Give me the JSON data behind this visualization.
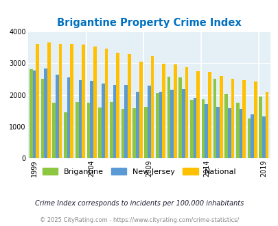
{
  "title": "Brigantine Property Crime Index",
  "subtitle": "Crime Index corresponds to incidents per 100,000 inhabitants",
  "footer": "© 2025 CityRating.com - https://www.cityrating.com/crime-statistics/",
  "years": [
    1999,
    2000,
    2001,
    2002,
    2003,
    2004,
    2005,
    2006,
    2007,
    2008,
    2009,
    2010,
    2011,
    2012,
    2013,
    2014,
    2015,
    2016,
    2017,
    2018,
    2019
  ],
  "xtick_years": [
    1999,
    2004,
    2009,
    2014,
    2019
  ],
  "xtick_labels": [
    "1999",
    "2004",
    "2009",
    "2014",
    "2019"
  ],
  "brigantine": [
    2820,
    2500,
    1760,
    1460,
    1780,
    1750,
    1600,
    1780,
    1550,
    1590,
    1630,
    2060,
    2570,
    2550,
    1830,
    1870,
    2510,
    2030,
    1760,
    1260,
    1940
  ],
  "new_jersey": [
    2760,
    2840,
    2640,
    2560,
    2470,
    2450,
    2360,
    2310,
    2320,
    2110,
    2300,
    2090,
    2160,
    2180,
    1900,
    1720,
    1620,
    1570,
    1550,
    1390,
    1330
  ],
  "national": [
    3610,
    3650,
    3620,
    3620,
    3590,
    3520,
    3460,
    3340,
    3290,
    3060,
    3220,
    2990,
    2960,
    2870,
    2740,
    2730,
    2600,
    2510,
    2470,
    2430,
    2100
  ],
  "bar_colors": {
    "brigantine": "#8dc63f",
    "new_jersey": "#5b9bd5",
    "national": "#ffc000"
  },
  "bg_color": "#e4f0f6",
  "ylim": [
    0,
    4000
  ],
  "yticks": [
    0,
    1000,
    2000,
    3000,
    4000
  ],
  "title_color": "#0070c0",
  "title_fontsize": 10.5,
  "subtitle_color": "#1a1a2e",
  "subtitle_fontsize": 7,
  "footer_color": "#888888",
  "footer_fontsize": 6
}
